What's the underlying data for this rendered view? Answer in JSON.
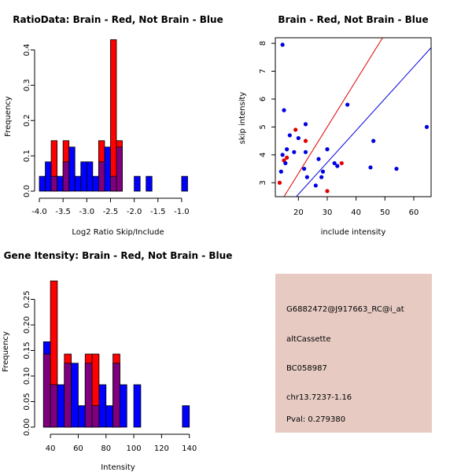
{
  "colors": {
    "red": "#ff0000",
    "blue": "#0000ff",
    "overlap": "#7f007f",
    "scatter_red": "#e00000",
    "scatter_blue": "#0000e0",
    "info_bg": "#e7cbc3",
    "pval": "#a00000"
  },
  "chart_data": [
    {
      "id": "ratio",
      "type": "histogram-overlay",
      "title": "RatioData: Brain - Red, Not Brain - Blue",
      "xlabel": "Log2 Ratio Skip/Include",
      "ylabel": "Frequency",
      "xlim": [
        -4.0,
        -0.75
      ],
      "ylim": [
        0,
        0.43
      ],
      "xticks": [
        -4.0,
        -3.5,
        -3.0,
        -2.5,
        -2.0,
        -1.5,
        -1.0
      ],
      "xtick_labels": [
        "-4.0",
        "-3.5",
        "-3.0",
        "-2.5",
        "-2.0",
        "-1.5",
        "-1.0"
      ],
      "yticks": [
        0,
        0.1,
        0.2,
        0.3,
        0.4
      ],
      "ytick_labels": [
        "0.0",
        "0.1",
        "0.2",
        "0.3",
        "0.4"
      ],
      "bins": [
        {
          "x0": -4.0,
          "x1": -3.875,
          "blue": 0.042,
          "red": 0
        },
        {
          "x0": -3.875,
          "x1": -3.75,
          "blue": 0.083,
          "red": 0
        },
        {
          "x0": -3.75,
          "x1": -3.625,
          "blue": 0.042,
          "red": 0.143
        },
        {
          "x0": -3.625,
          "x1": -3.5,
          "blue": 0.042,
          "red": 0
        },
        {
          "x0": -3.5,
          "x1": -3.375,
          "blue": 0.083,
          "red": 0.143
        },
        {
          "x0": -3.375,
          "x1": -3.25,
          "blue": 0.125,
          "red": 0
        },
        {
          "x0": -3.25,
          "x1": -3.125,
          "blue": 0.042,
          "red": 0
        },
        {
          "x0": -3.125,
          "x1": -3.0,
          "blue": 0.083,
          "red": 0
        },
        {
          "x0": -3.0,
          "x1": -2.875,
          "blue": 0.083,
          "red": 0
        },
        {
          "x0": -2.875,
          "x1": -2.75,
          "blue": 0.042,
          "red": 0
        },
        {
          "x0": -2.75,
          "x1": -2.625,
          "blue": 0.083,
          "red": 0.143
        },
        {
          "x0": -2.625,
          "x1": -2.5,
          "blue": 0.125,
          "red": 0
        },
        {
          "x0": -2.5,
          "x1": -2.375,
          "blue": 0.042,
          "red": 0.429
        },
        {
          "x0": -2.375,
          "x1": -2.25,
          "blue": 0.125,
          "red": 0.143
        },
        {
          "x0": -2.25,
          "x1": -2.125,
          "blue": 0,
          "red": 0
        },
        {
          "x0": -2.125,
          "x1": -2.0,
          "blue": 0,
          "red": 0
        },
        {
          "x0": -2.0,
          "x1": -1.875,
          "blue": 0.042,
          "red": 0
        },
        {
          "x0": -1.75,
          "x1": -1.625,
          "blue": 0.042,
          "red": 0
        },
        {
          "x0": -1.0,
          "x1": -0.875,
          "blue": 0.042,
          "red": 0
        }
      ]
    },
    {
      "id": "scatter",
      "type": "scatter",
      "title": "Brain - Red, Not Brain - Blue",
      "xlabel": "include intensity",
      "ylabel": "skip intensity",
      "xlim": [
        12,
        66
      ],
      "ylim": [
        2.5,
        8.2
      ],
      "xticks": [
        20,
        30,
        40,
        50,
        60
      ],
      "xtick_labels": [
        "20",
        "30",
        "40",
        "50",
        "60"
      ],
      "yticks": [
        3,
        4,
        5,
        6,
        7,
        8
      ],
      "ytick_labels": [
        "3",
        "4",
        "5",
        "6",
        "7",
        "8"
      ],
      "lines": [
        {
          "color": "red",
          "slope": 0.1667,
          "intercept": 0.0
        },
        {
          "color": "blue",
          "slope": 0.1143,
          "intercept": 0.3
        }
      ],
      "series": [
        {
          "name": "Brain",
          "color": "red",
          "points": [
            [
              13.5,
              3.0
            ],
            [
              15.0,
              3.8
            ],
            [
              16.0,
              3.9
            ],
            [
              19.0,
              4.9
            ],
            [
              22.5,
              4.5
            ],
            [
              30.0,
              2.7
            ],
            [
              35.0,
              3.7
            ]
          ]
        },
        {
          "name": "Not Brain",
          "color": "blue",
          "points": [
            [
              14.5,
              7.95
            ],
            [
              15.0,
              5.6
            ],
            [
              14.0,
              3.4
            ],
            [
              14.5,
              4.0
            ],
            [
              15.5,
              3.7
            ],
            [
              16.0,
              4.2
            ],
            [
              17.0,
              4.7
            ],
            [
              18.5,
              4.1
            ],
            [
              20.0,
              4.6
            ],
            [
              22.0,
              3.5
            ],
            [
              22.5,
              4.1
            ],
            [
              22.5,
              5.1
            ],
            [
              23.0,
              3.2
            ],
            [
              26.0,
              2.9
            ],
            [
              27.0,
              3.85
            ],
            [
              28.0,
              3.2
            ],
            [
              28.5,
              3.4
            ],
            [
              30.0,
              4.2
            ],
            [
              32.5,
              3.7
            ],
            [
              33.5,
              3.6
            ],
            [
              37.0,
              5.8
            ],
            [
              45.0,
              3.55
            ],
            [
              46.0,
              4.5
            ],
            [
              54.0,
              3.5
            ],
            [
              64.5,
              5.0
            ]
          ]
        }
      ]
    },
    {
      "id": "gene",
      "type": "histogram-overlay",
      "title": "Gene Itensity: Brain - Red, Not Brain - Blue",
      "xlabel": "Intensity",
      "ylabel": "Frequency",
      "xlim": [
        32,
        143
      ],
      "ylim": [
        0,
        0.3
      ],
      "xticks": [
        40,
        60,
        80,
        100,
        120,
        140
      ],
      "xtick_labels": [
        "40",
        "60",
        "80",
        "100",
        "120",
        "140"
      ],
      "yticks": [
        0,
        0.05,
        0.1,
        0.15,
        0.2,
        0.25
      ],
      "ytick_labels": [
        "0.00",
        "0.05",
        "0.10",
        "0.15",
        "0.20",
        "0.25"
      ],
      "bins": [
        {
          "x0": 35,
          "x1": 40,
          "blue": 0.167,
          "red": 0.143
        },
        {
          "x0": 40,
          "x1": 45,
          "blue": 0.083,
          "red": 0.286
        },
        {
          "x0": 45,
          "x1": 50,
          "blue": 0.083,
          "red": 0
        },
        {
          "x0": 50,
          "x1": 55,
          "blue": 0.125,
          "red": 0.143
        },
        {
          "x0": 55,
          "x1": 60,
          "blue": 0.125,
          "red": 0
        },
        {
          "x0": 60,
          "x1": 65,
          "blue": 0.042,
          "red": 0
        },
        {
          "x0": 65,
          "x1": 70,
          "blue": 0.125,
          "red": 0.143
        },
        {
          "x0": 70,
          "x1": 75,
          "blue": 0.042,
          "red": 0.143
        },
        {
          "x0": 75,
          "x1": 80,
          "blue": 0.083,
          "red": 0
        },
        {
          "x0": 80,
          "x1": 85,
          "blue": 0.042,
          "red": 0
        },
        {
          "x0": 85,
          "x1": 90,
          "blue": 0.125,
          "red": 0.143
        },
        {
          "x0": 90,
          "x1": 95,
          "blue": 0.083,
          "red": 0
        },
        {
          "x0": 100,
          "x1": 105,
          "blue": 0.083,
          "red": 0
        },
        {
          "x0": 135,
          "x1": 140,
          "blue": 0.042,
          "red": 0
        }
      ]
    }
  ],
  "info": {
    "line1": "G6882472@J917663_RC@i_at",
    "line2": "altCassette",
    "line3": "BC058987",
    "line4": "chr13.7237-1.16",
    "pval": "Pval: 0.279380"
  }
}
